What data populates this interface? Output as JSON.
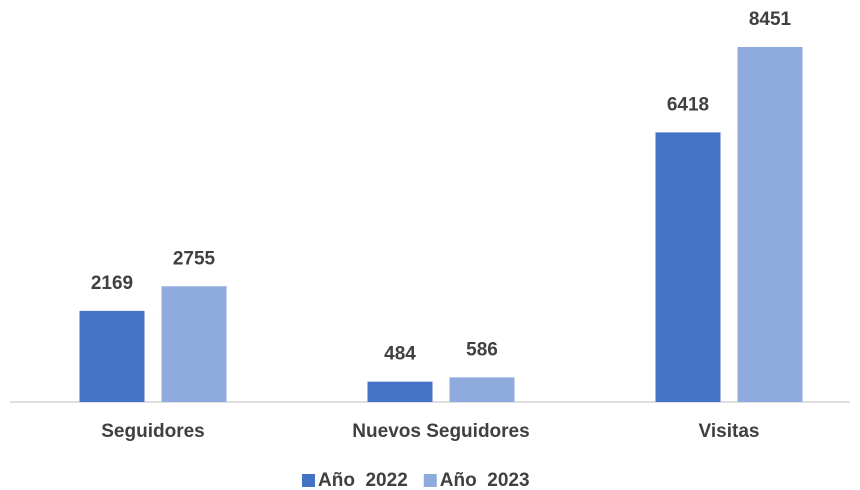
{
  "chart_data": {
    "type": "bar",
    "categories": [
      "Seguidores",
      "Nuevos Seguidores",
      "Visitas"
    ],
    "series": [
      {
        "name": "Año  2022",
        "color": "#4472c4",
        "values": [
          2169,
          484,
          6418
        ]
      },
      {
        "name": "Año  2023",
        "color": "#8faadc",
        "values": [
          2755,
          586,
          8451
        ]
      }
    ],
    "legend": "bottom"
  }
}
